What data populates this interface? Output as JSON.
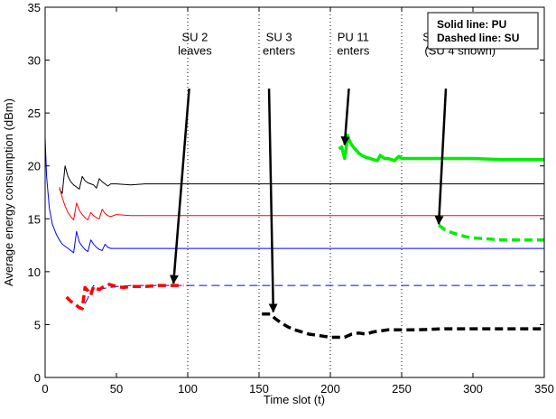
{
  "chart_data": {
    "type": "line",
    "xlabel": "Time slot (t)",
    "ylabel": "Average energy consumption (dBm)",
    "xlim": [
      0,
      350
    ],
    "ylim": [
      0,
      35
    ],
    "xticks": [
      0,
      50,
      100,
      150,
      200,
      250,
      300,
      350
    ],
    "yticks": [
      0,
      5,
      10,
      15,
      20,
      25,
      30,
      35
    ],
    "grid": false,
    "legend": {
      "position": "top-right",
      "lines": [
        "Solid line: PU",
        "Dashed line: SU"
      ]
    },
    "event_lines_x": [
      100,
      150,
      200,
      250
    ],
    "annotations": [
      {
        "id": "su2",
        "lines": [
          "SU 2",
          "leaves"
        ],
        "text_x": 105,
        "text_y": 31.8,
        "arrow_from": [
          101,
          27.3
        ],
        "arrow_to": [
          90,
          8.9
        ]
      },
      {
        "id": "su3",
        "lines": [
          "SU 3",
          "enters"
        ],
        "text_x": 164,
        "text_y": 31.8,
        "arrow_from": [
          157,
          27.3
        ],
        "arrow_to": [
          160,
          6.2
        ]
      },
      {
        "id": "pu11",
        "lines": [
          "PU 11",
          "enters"
        ],
        "text_x": 216,
        "text_y": 31.8,
        "arrow_from": [
          213,
          27.3
        ],
        "arrow_to": [
          210,
          22.0
        ]
      },
      {
        "id": "su48",
        "lines": [
          "SUs 4–8 enter",
          "(SU 4 shown)"
        ],
        "text_x": 291,
        "text_y": 31.8,
        "arrow_from": [
          281,
          27.3
        ],
        "arrow_to": [
          276,
          14.5
        ]
      }
    ],
    "series": [
      {
        "style": "solid",
        "color": "#000000",
        "width": 1,
        "x": [
          10,
          12,
          14,
          16,
          18,
          20,
          22,
          24,
          26,
          28,
          30,
          32,
          34,
          36,
          38,
          40,
          42,
          44,
          46,
          50,
          60,
          70,
          100,
          150,
          200,
          250,
          300,
          350
        ],
        "y": [
          17.8,
          17.4,
          20.0,
          19.0,
          18.5,
          18.2,
          18.0,
          17.8,
          19.0,
          18.6,
          18.4,
          18.3,
          18.2,
          17.9,
          18.8,
          18.5,
          18.3,
          18.1,
          18.3,
          18.3,
          18.2,
          18.3,
          18.3,
          18.3,
          18.3,
          18.3,
          18.3,
          18.3
        ]
      },
      {
        "style": "solid",
        "color": "#ff0000",
        "width": 1,
        "x": [
          10,
          12,
          14,
          16,
          18,
          20,
          22,
          24,
          26,
          28,
          30,
          32,
          34,
          36,
          38,
          40,
          42,
          44,
          46,
          50,
          60,
          100,
          150,
          200,
          250,
          300,
          350
        ],
        "y": [
          18.0,
          17.0,
          16.2,
          15.6,
          15.2,
          14.9,
          16.5,
          15.8,
          15.4,
          15.1,
          14.9,
          15.6,
          15.3,
          15.1,
          15.0,
          15.9,
          15.5,
          15.3,
          15.2,
          15.4,
          15.3,
          15.3,
          15.3,
          15.3,
          15.3,
          15.3,
          15.3
        ]
      },
      {
        "style": "solid",
        "color": "#0000ff",
        "width": 1,
        "x": [
          0,
          1,
          3,
          5,
          8,
          10,
          12,
          15,
          18,
          20,
          22,
          24,
          26,
          28,
          30,
          32,
          34,
          36,
          38,
          40,
          42,
          44,
          46,
          50,
          60,
          70,
          100,
          150,
          200,
          250,
          300,
          350
        ],
        "y": [
          22.7,
          19.0,
          16.0,
          14.5,
          13.5,
          13.0,
          12.6,
          12.3,
          12.0,
          11.8,
          13.8,
          12.8,
          12.4,
          12.1,
          11.9,
          13.0,
          12.6,
          12.3,
          12.1,
          12.0,
          12.6,
          12.3,
          12.2,
          12.2,
          12.2,
          12.2,
          12.2,
          12.2,
          12.2,
          12.2,
          12.2,
          12.2
        ]
      },
      {
        "style": "dashed",
        "color": "#0000ff",
        "width": 1,
        "x": [
          28,
          30,
          32,
          34,
          36,
          38,
          40,
          50,
          60,
          80,
          100,
          150,
          200,
          250,
          300,
          350
        ],
        "y": [
          7.0,
          7.5,
          8.2,
          8.7,
          8.5,
          8.4,
          8.4,
          8.6,
          8.7,
          8.7,
          8.7,
          8.7,
          8.7,
          8.7,
          8.7,
          8.7
        ]
      },
      {
        "style": "dashed",
        "color": "#ff0000",
        "width": 3.5,
        "x": [
          15,
          18,
          20,
          22,
          24,
          26,
          28,
          30,
          32,
          34,
          36,
          38,
          40,
          45,
          50,
          55,
          60,
          70,
          80,
          90,
          97
        ],
        "y": [
          7.6,
          7.2,
          7.0,
          6.8,
          6.6,
          6.5,
          8.5,
          8.2,
          7.8,
          8.6,
          8.4,
          8.3,
          8.5,
          8.8,
          8.6,
          8.5,
          8.6,
          8.6,
          8.7,
          8.7,
          8.7
        ]
      },
      {
        "style": "dashed",
        "color": "#000000",
        "width": 3.5,
        "x": [
          152,
          155,
          158,
          161,
          165,
          170,
          175,
          180,
          185,
          190,
          195,
          200,
          205,
          210,
          215,
          220,
          225,
          230,
          235,
          240,
          250,
          260,
          280,
          300,
          320,
          350
        ],
        "y": [
          6.0,
          6.0,
          6.0,
          5.6,
          5.2,
          4.8,
          4.5,
          4.3,
          4.1,
          4.0,
          3.9,
          3.8,
          3.8,
          3.8,
          4.1,
          4.2,
          4.1,
          4.3,
          4.4,
          4.5,
          4.5,
          4.5,
          4.6,
          4.6,
          4.6,
          4.6
        ]
      },
      {
        "style": "solid",
        "color": "#00ee00",
        "width": 3.5,
        "x": [
          206,
          208,
          210,
          211,
          212,
          213,
          214,
          216,
          218,
          220,
          222,
          225,
          228,
          230,
          233,
          235,
          238,
          240,
          243,
          245,
          248,
          250,
          260,
          280,
          300,
          320,
          350
        ],
        "y": [
          21.6,
          21.8,
          20.7,
          21.5,
          22.9,
          22.5,
          22.2,
          21.8,
          21.5,
          21.2,
          21.0,
          20.8,
          20.7,
          20.6,
          20.5,
          21.0,
          20.7,
          20.7,
          20.6,
          20.5,
          20.9,
          20.7,
          20.7,
          20.7,
          20.7,
          20.6,
          20.6
        ]
      },
      {
        "style": "dashed",
        "color": "#00ee00",
        "width": 3.5,
        "x": [
          276,
          280,
          285,
          290,
          295,
          300,
          310,
          320,
          330,
          340,
          350
        ],
        "y": [
          14.4,
          14.0,
          13.7,
          13.5,
          13.3,
          13.2,
          13.1,
          13.0,
          13.0,
          13.0,
          13.0
        ]
      }
    ]
  }
}
